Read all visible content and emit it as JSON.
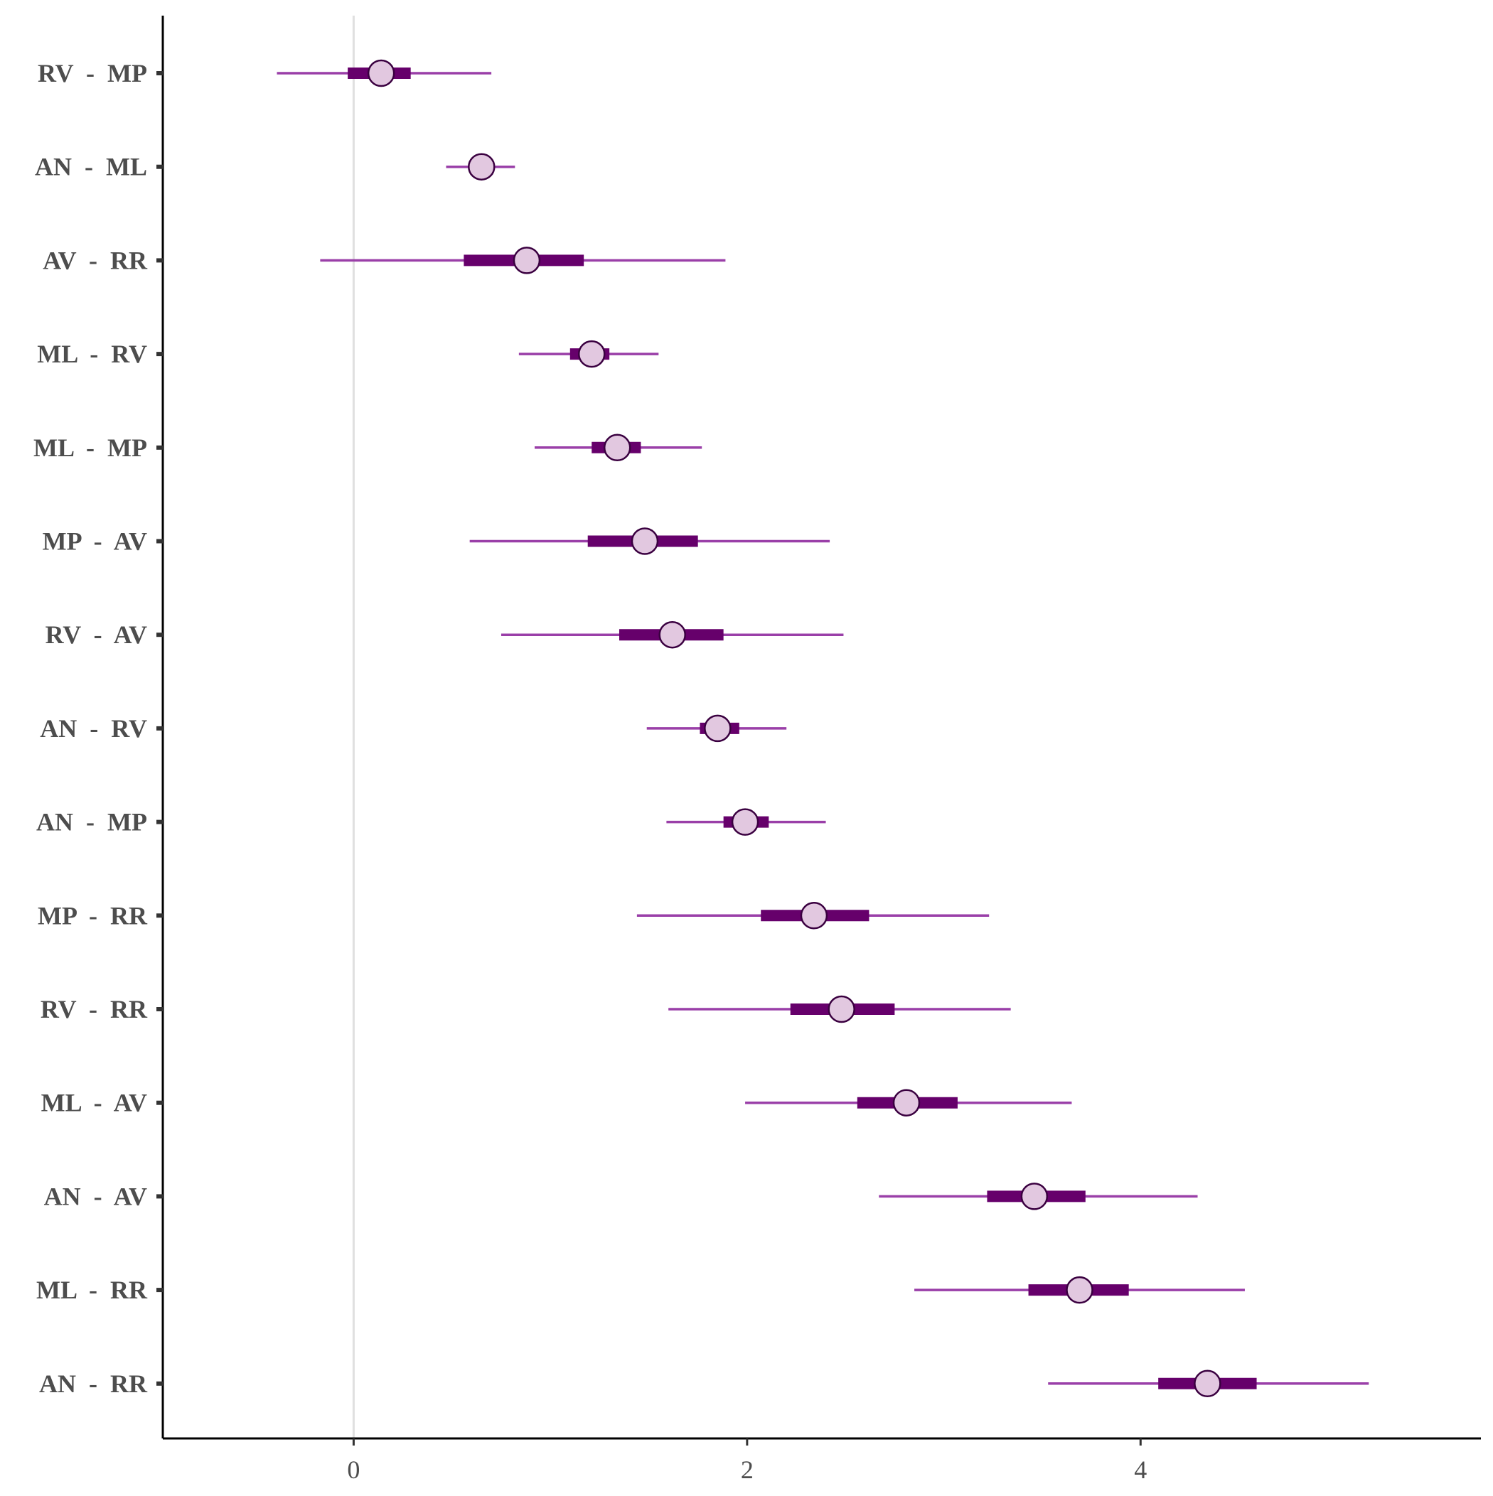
{
  "chart_data": {
    "type": "interval",
    "title": "",
    "xlabel": "",
    "ylabel": "",
    "xlim": [
      -0.97,
      5.73
    ],
    "xticks": [
      0,
      2,
      4
    ],
    "tick_labels": [
      "0",
      "2",
      "4"
    ],
    "reference_line": 0,
    "grid": false,
    "legend": "none",
    "colors": {
      "outer_interval": "#9a3fa8",
      "inner_interval": "#66006b",
      "point_fill": "#e2c8e0",
      "point_stroke": "#3a0040",
      "axis": "#000000",
      "reference": "#e0e0e0"
    },
    "categories": [
      "RV  -  MP",
      "AN  -  ML",
      "AV  -  RR",
      "ML  -  RV",
      "ML  -  MP",
      "MP  -  AV",
      "RV  -  AV",
      "AN  -  RV",
      "AN  -  MP",
      "MP  -  RR",
      "RV  -  RR",
      "ML  -  AV",
      "AN  -  AV",
      "ML  -  RR",
      "AN  -  RR"
    ],
    "estimate": [
      0.14,
      0.65,
      0.88,
      1.21,
      1.34,
      1.48,
      1.62,
      1.85,
      1.99,
      2.34,
      2.48,
      2.81,
      3.46,
      3.69,
      4.34
    ],
    "outer_low": [
      -0.39,
      0.47,
      -0.17,
      0.84,
      0.92,
      0.59,
      0.75,
      1.49,
      1.59,
      1.44,
      1.6,
      1.99,
      2.67,
      2.85,
      3.53
    ],
    "outer_high": [
      0.7,
      0.82,
      1.89,
      1.55,
      1.77,
      2.42,
      2.49,
      2.2,
      2.4,
      3.23,
      3.34,
      3.65,
      4.29,
      4.53,
      5.16
    ],
    "inner_low": [
      -0.03,
      0.6,
      0.56,
      1.1,
      1.21,
      1.19,
      1.35,
      1.76,
      1.88,
      2.07,
      2.22,
      2.56,
      3.22,
      3.43,
      4.09
    ],
    "inner_high": [
      0.29,
      0.7,
      1.17,
      1.3,
      1.46,
      1.75,
      1.88,
      1.96,
      2.11,
      2.62,
      2.75,
      3.07,
      3.72,
      3.94,
      4.59
    ]
  }
}
